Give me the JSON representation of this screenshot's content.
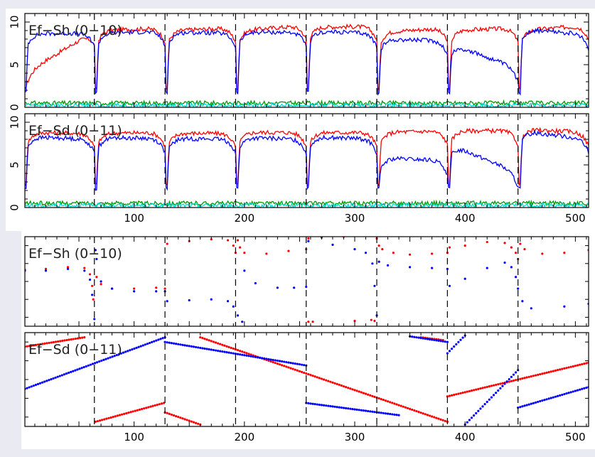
{
  "colors": {
    "background": "#eaeaf2",
    "plot_bg": "#ffffff",
    "axis": "#000000",
    "series_red": "#ff0000",
    "series_blue": "#0000ff",
    "series_green": "#009900",
    "series_cyan": "#00dddd"
  },
  "chart_data": [
    {
      "type": "line",
      "title": "Ef−Sh (0−10)",
      "xlim": [
        1,
        512
      ],
      "ylim": [
        0,
        11
      ],
      "yticks": [
        0,
        5,
        10
      ],
      "y_tick_labels": [
        "0",
        "5",
        "10"
      ],
      "x_tick_labels": [],
      "dividers": [
        64,
        128,
        192,
        256,
        320,
        384,
        448
      ],
      "series": [
        {
          "name": "red",
          "segments": [
            [
              4,
              9.0
            ],
            [
              9.0,
              9.3
            ],
            [
              9.0,
              9.3
            ],
            [
              9.0,
              9.6
            ],
            [
              9.4,
              9.5
            ],
            [
              8.8,
              9.3
            ],
            [
              9.0,
              9.3
            ],
            [
              9.0,
              9.6
            ]
          ],
          "drop_min": 2.0
        },
        {
          "name": "blue",
          "segments": [
            [
              8.6,
              8.7
            ],
            [
              8.7,
              8.9
            ],
            [
              8.8,
              8.7
            ],
            [
              8.8,
              8.8
            ],
            [
              8.9,
              8.7
            ],
            [
              8.0,
              7.8
            ],
            [
              7.5,
              4.5
            ],
            [
              9.2,
              8.5
            ]
          ],
          "drop_min": 1.5
        },
        {
          "name": "green",
          "level": 0.5
        },
        {
          "name": "cyan",
          "level": 0.25
        }
      ]
    },
    {
      "type": "line",
      "title": "Ef−Sd (0−11)",
      "xlim": [
        1,
        512
      ],
      "ylim": [
        0,
        11
      ],
      "yticks": [
        0,
        5,
        10
      ],
      "y_tick_labels": [
        "0",
        "5",
        "10"
      ],
      "x_tick_labels": [
        "100",
        "200",
        "300",
        "400",
        "500"
      ],
      "dividers": [
        64,
        128,
        192,
        256,
        320,
        384,
        448
      ],
      "series": [
        {
          "name": "red",
          "segments": [
            [
              8.8,
              8.7
            ],
            [
              8.7,
              8.8
            ],
            [
              8.7,
              8.7
            ],
            [
              8.8,
              8.8
            ],
            [
              8.8,
              8.8
            ],
            [
              8.8,
              9.0
            ],
            [
              9.0,
              9.0
            ],
            [
              9.2,
              8.8
            ]
          ],
          "drop_min": 2.5
        },
        {
          "name": "blue",
          "segments": [
            [
              8.3,
              8.0
            ],
            [
              8.2,
              8.1
            ],
            [
              8.1,
              8.0
            ],
            [
              8.2,
              8.0
            ],
            [
              8.3,
              8.0
            ],
            [
              5.8,
              5.5
            ],
            [
              7.5,
              4.0
            ],
            [
              9.0,
              8.0
            ]
          ],
          "drop_min": 2.0
        },
        {
          "name": "green",
          "level": 0.5
        },
        {
          "name": "cyan",
          "level": 0.25
        }
      ]
    },
    {
      "type": "scatter",
      "title": "Ef−Sh (0−10)",
      "xlim": [
        1,
        512
      ],
      "ylim": [
        0,
        1
      ],
      "x_tick_labels": [],
      "dividers": [
        64,
        128,
        192,
        256,
        320,
        384,
        448
      ],
      "series": [
        {
          "name": "red",
          "points": [
            [
              1,
              0.63
            ],
            [
              20,
              0.64
            ],
            [
              40,
              0.66
            ],
            [
              55,
              0.65
            ],
            [
              60,
              0.58
            ],
            [
              62,
              0.45
            ],
            [
              63,
              0.3
            ],
            [
              66,
              0.55
            ],
            [
              70,
              0.47
            ],
            [
              80,
              0.42
            ],
            [
              100,
              0.42
            ],
            [
              120,
              0.43
            ],
            [
              128,
              0.42
            ],
            [
              130,
              0.92
            ],
            [
              150,
              0.95
            ],
            [
              170,
              0.97
            ],
            [
              185,
              0.96
            ],
            [
              190,
              0.9
            ],
            [
              192,
              0.82
            ],
            [
              194,
              0.96
            ],
            [
              196,
              0.88
            ],
            [
              200,
              0.82
            ],
            [
              220,
              0.81
            ],
            [
              240,
              0.84
            ],
            [
              256,
              0.86
            ],
            [
              258,
              0.98
            ],
            [
              270,
              0.99
            ],
            [
              290,
              1.0
            ],
            [
              258,
              0.05
            ],
            [
              262,
              0.05
            ],
            [
              300,
              0.06
            ],
            [
              315,
              0.07
            ],
            [
              318,
              0.06
            ],
            [
              320,
              0.98
            ],
            [
              322,
              0.9
            ],
            [
              325,
              0.86
            ],
            [
              335,
              0.82
            ],
            [
              350,
              0.8
            ],
            [
              370,
              0.81
            ],
            [
              384,
              0.82
            ],
            [
              386,
              0.88
            ],
            [
              400,
              0.9
            ],
            [
              420,
              0.94
            ],
            [
              436,
              0.93
            ],
            [
              442,
              0.88
            ],
            [
              446,
              0.82
            ],
            [
              448,
              0.75
            ],
            [
              450,
              0.92
            ],
            [
              454,
              0.86
            ],
            [
              470,
              0.81
            ],
            [
              490,
              0.82
            ],
            [
              512,
              0.85
            ]
          ]
        },
        {
          "name": "blue",
          "points": [
            [
              1,
              0.62
            ],
            [
              20,
              0.62
            ],
            [
              40,
              0.64
            ],
            [
              55,
              0.62
            ],
            [
              60,
              0.52
            ],
            [
              62,
              0.35
            ],
            [
              64,
              0.08
            ],
            [
              65,
              0.85
            ],
            [
              66,
              0.75
            ],
            [
              70,
              0.5
            ],
            [
              80,
              0.42
            ],
            [
              100,
              0.39
            ],
            [
              120,
              0.39
            ],
            [
              128,
              0.39
            ],
            [
              130,
              0.28
            ],
            [
              150,
              0.29
            ],
            [
              170,
              0.3
            ],
            [
              185,
              0.28
            ],
            [
              190,
              0.22
            ],
            [
              194,
              0.12
            ],
            [
              198,
              0.05
            ],
            [
              200,
              0.62
            ],
            [
              210,
              0.48
            ],
            [
              230,
              0.43
            ],
            [
              245,
              0.43
            ],
            [
              256,
              0.44
            ],
            [
              258,
              0.95
            ],
            [
              280,
              0.91
            ],
            [
              300,
              0.86
            ],
            [
              310,
              0.82
            ],
            [
              316,
              0.7
            ],
            [
              318,
              0.45
            ],
            [
              320,
              0.12
            ],
            [
              322,
              0.72
            ],
            [
              330,
              0.68
            ],
            [
              350,
              0.66
            ],
            [
              370,
              0.65
            ],
            [
              384,
              0.64
            ],
            [
              386,
              0.45
            ],
            [
              400,
              0.53
            ],
            [
              420,
              0.65
            ],
            [
              436,
              0.71
            ],
            [
              442,
              0.66
            ],
            [
              446,
              0.55
            ],
            [
              448,
              0.42
            ],
            [
              452,
              0.28
            ],
            [
              460,
              0.2
            ],
            [
              490,
              0.22
            ],
            [
              512,
              0.25
            ]
          ]
        }
      ]
    },
    {
      "type": "scatter",
      "title": "Ef−Sd (0−11)",
      "xlim": [
        1,
        512
      ],
      "ylim": [
        0,
        1
      ],
      "x_tick_labels": [
        "100",
        "200",
        "300",
        "400",
        "500"
      ],
      "dividers": [
        64,
        128,
        192,
        256,
        320,
        384,
        448
      ],
      "series": [
        {
          "name": "red",
          "segments": [
            [
              1,
              0.85,
              55,
              0.95
            ],
            [
              65,
              0.05,
              127,
              0.25
            ],
            [
              128,
              0.15,
              160,
              0.02
            ],
            [
              160,
              0.95,
              384,
              0.05
            ],
            [
              360,
              0.95,
              380,
              0.92
            ],
            [
              384,
              0.32,
              512,
              0.68
            ]
          ]
        },
        {
          "name": "blue",
          "segments": [
            [
              1,
              0.4,
              128,
              0.95
            ],
            [
              128,
              0.9,
              256,
              0.65
            ],
            [
              256,
              0.25,
              340,
              0.12
            ],
            [
              350,
              0.96,
              384,
              0.9
            ],
            [
              384,
              0.78,
              400,
              0.97
            ],
            [
              400,
              0.02,
              448,
              0.6
            ],
            [
              448,
              0.2,
              512,
              0.42
            ]
          ]
        }
      ]
    }
  ]
}
